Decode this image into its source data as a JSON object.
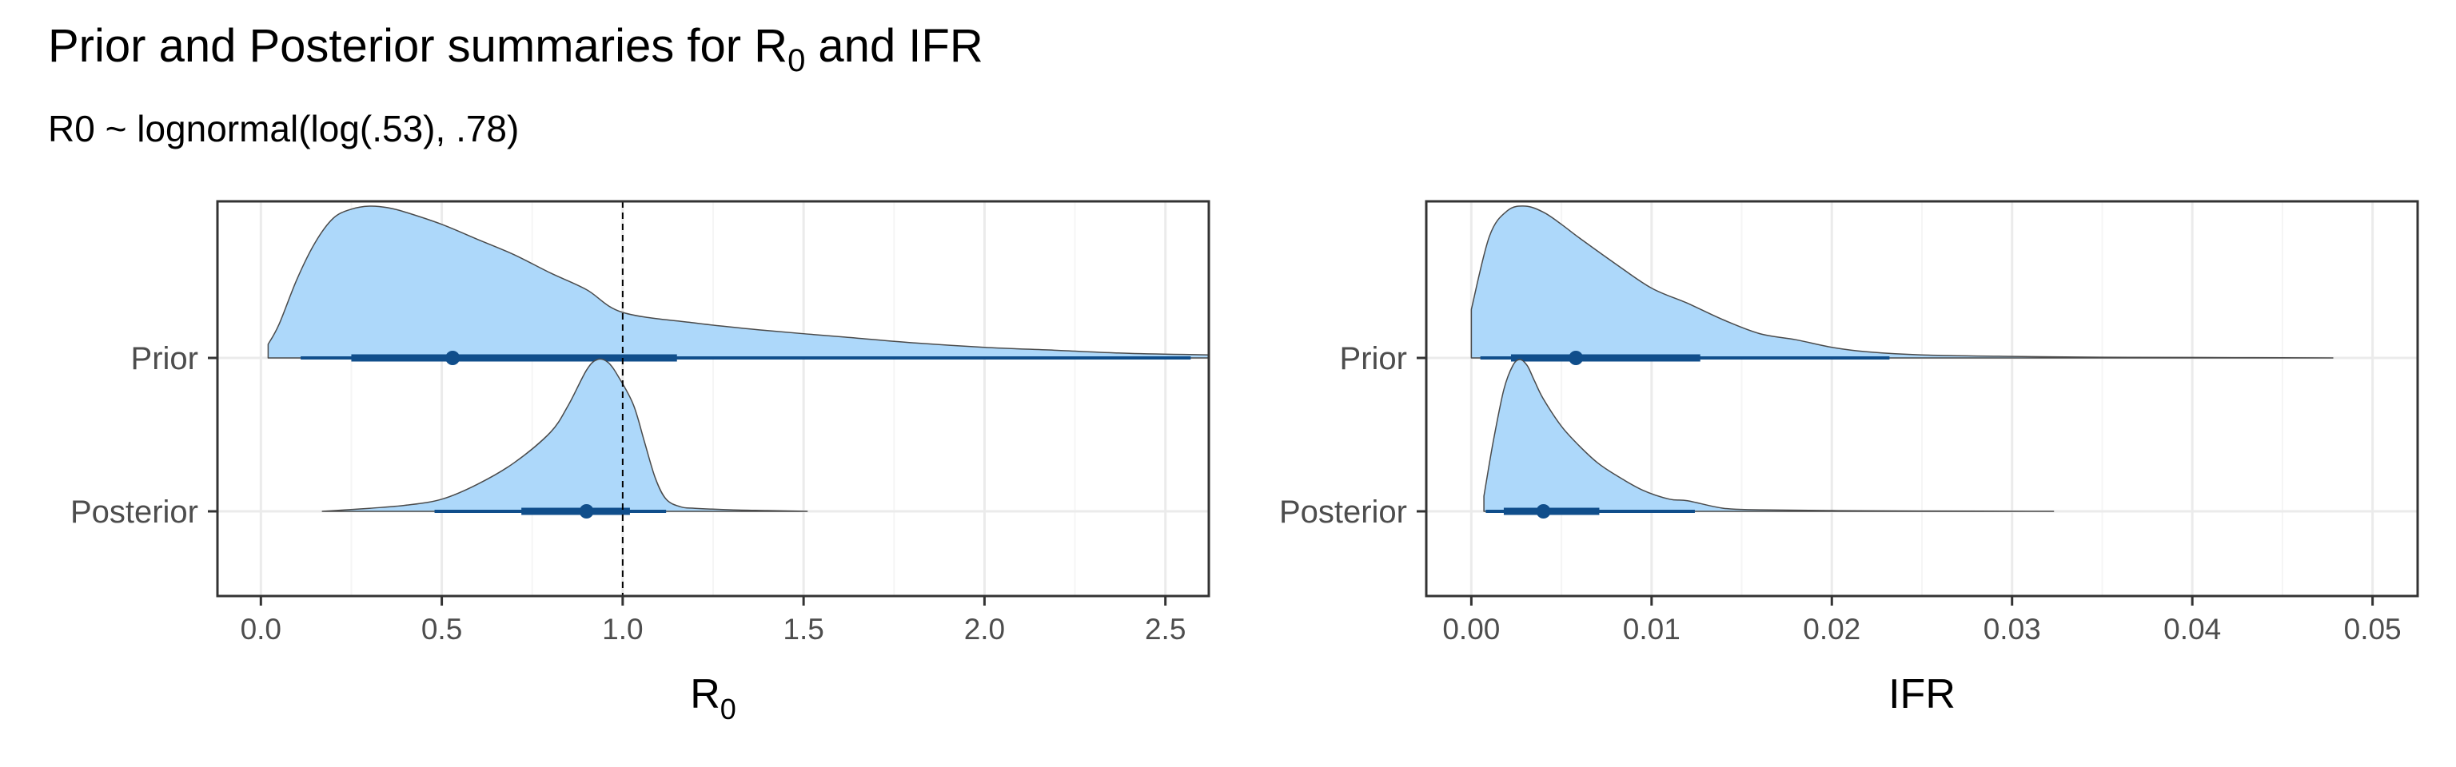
{
  "title": {
    "prefix": "Prior and Posterior summaries for R",
    "sub": "0",
    "suffix": " and IFR"
  },
  "subtitle": "R0 ~ lognormal(log(.53), .78)",
  "colors": {
    "fill": "#add8fa",
    "outline": "#4a4a4a",
    "interval": "#104e8b",
    "grid_major": "#ebebeb",
    "grid_minor": "#f5f5f5",
    "panel_border": "#333333",
    "reference_line": "#000000"
  },
  "chart_data": [
    {
      "type": "halfeye",
      "xlabel": "R",
      "xlabel_sub": "0",
      "xlim": [
        -0.12,
        2.62
      ],
      "xticks": [
        0.0,
        0.5,
        1.0,
        1.5,
        2.0,
        2.5
      ],
      "xtick_labels": [
        "0.0",
        "0.5",
        "1.0",
        "1.5",
        "2.0",
        "2.5"
      ],
      "categories": [
        "Prior",
        "Posterior"
      ],
      "reference_line": {
        "x": 1.0,
        "style": "dashed"
      },
      "grid": true,
      "series": [
        {
          "name": "Prior",
          "density": {
            "x": [
              0.02,
              0.05,
              0.1,
              0.15,
              0.2,
              0.25,
              0.3,
              0.35,
              0.4,
              0.5,
              0.6,
              0.7,
              0.8,
              0.9,
              1.0,
              1.2,
              1.4,
              1.6,
              1.8,
              2.0,
              2.2,
              2.4,
              2.62
            ],
            "height": [
              0.09,
              0.22,
              0.52,
              0.76,
              0.92,
              0.98,
              1.0,
              0.99,
              0.96,
              0.88,
              0.78,
              0.68,
              0.56,
              0.45,
              0.3,
              0.23,
              0.18,
              0.14,
              0.1,
              0.07,
              0.05,
              0.03,
              0.02
            ]
          },
          "point": 0.53,
          "interval_66": [
            0.25,
            1.15
          ],
          "interval_95": [
            0.11,
            2.57
          ]
        },
        {
          "name": "Posterior",
          "density": {
            "x": [
              0.17,
              0.3,
              0.4,
              0.5,
              0.6,
              0.7,
              0.8,
              0.85,
              0.9,
              0.93,
              0.96,
              0.99,
              1.03,
              1.06,
              1.09,
              1.12,
              1.16,
              1.2,
              1.3,
              1.4,
              1.51
            ],
            "height": [
              0.0,
              0.02,
              0.04,
              0.08,
              0.18,
              0.32,
              0.52,
              0.7,
              0.93,
              1.0,
              0.98,
              0.88,
              0.7,
              0.46,
              0.22,
              0.08,
              0.03,
              0.02,
              0.01,
              0.005,
              0.0
            ]
          },
          "point": 0.9,
          "interval_66": [
            0.72,
            1.02
          ],
          "interval_95": [
            0.48,
            1.12
          ]
        }
      ]
    },
    {
      "type": "halfeye",
      "xlabel": "IFR",
      "xlabel_sub": "",
      "xlim": [
        -0.0025,
        0.0525
      ],
      "xticks": [
        0.0,
        0.01,
        0.02,
        0.03,
        0.04,
        0.05
      ],
      "xtick_labels": [
        "0.00",
        "0.01",
        "0.02",
        "0.03",
        "0.04",
        "0.05"
      ],
      "categories": [
        "Prior",
        "Posterior"
      ],
      "grid": true,
      "series": [
        {
          "name": "Prior",
          "density": {
            "x": [
              0.0,
              0.001,
              0.002,
              0.003,
              0.004,
              0.005,
              0.006,
              0.008,
              0.01,
              0.012,
              0.014,
              0.016,
              0.018,
              0.02,
              0.022,
              0.025,
              0.03,
              0.035,
              0.04,
              0.0478
            ],
            "height": [
              0.32,
              0.8,
              0.97,
              1.0,
              0.96,
              0.88,
              0.79,
              0.62,
              0.46,
              0.36,
              0.25,
              0.16,
              0.12,
              0.07,
              0.04,
              0.02,
              0.01,
              0.005,
              0.003,
              0.0
            ]
          },
          "point": 0.0058,
          "interval_66": [
            0.0022,
            0.0127
          ],
          "interval_95": [
            0.0005,
            0.0232
          ]
        },
        {
          "name": "Posterior",
          "density": {
            "x": [
              0.0007,
              0.0012,
              0.0018,
              0.0023,
              0.0027,
              0.0031,
              0.0035,
              0.004,
              0.005,
              0.006,
              0.007,
              0.008,
              0.0095,
              0.011,
              0.012,
              0.014,
              0.016,
              0.02,
              0.025,
              0.0323
            ],
            "height": [
              0.1,
              0.45,
              0.8,
              0.96,
              1.0,
              0.96,
              0.86,
              0.74,
              0.56,
              0.43,
              0.32,
              0.24,
              0.14,
              0.08,
              0.07,
              0.02,
              0.01,
              0.005,
              0.002,
              0.0
            ]
          },
          "point": 0.004,
          "interval_66": [
            0.0018,
            0.0071
          ],
          "interval_95": [
            0.0008,
            0.0124
          ]
        }
      ]
    }
  ]
}
